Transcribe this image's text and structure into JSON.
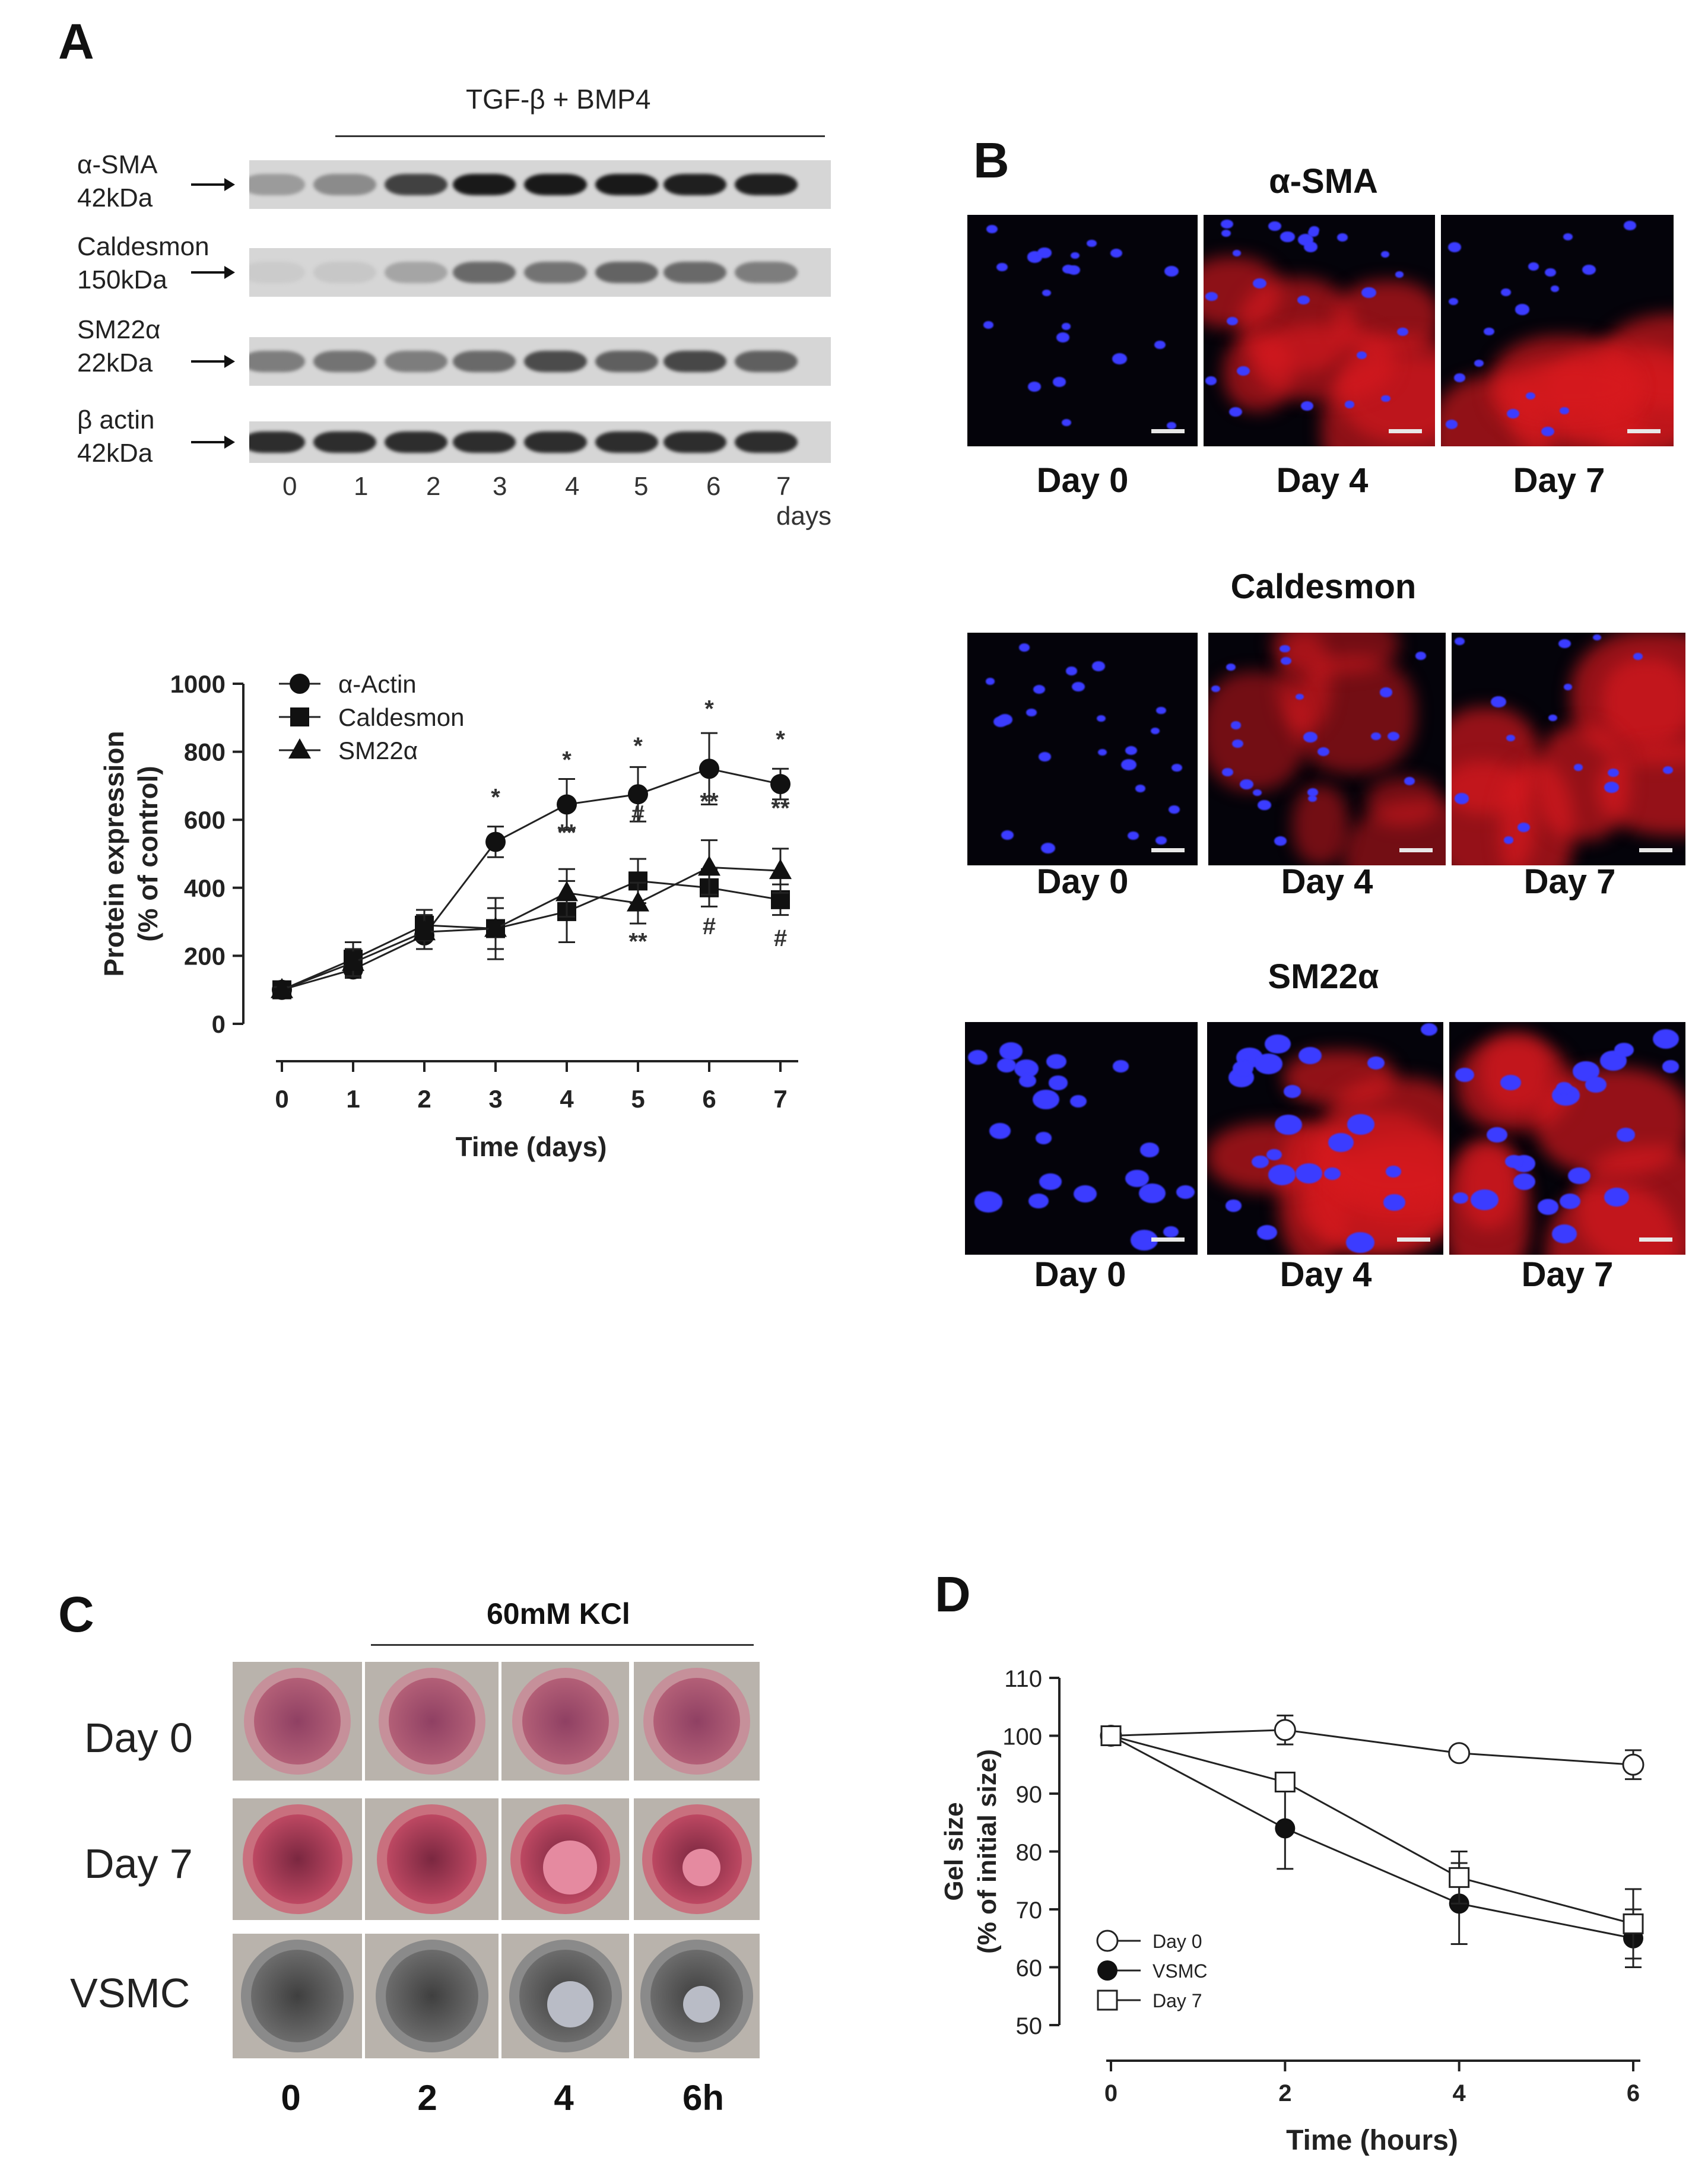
{
  "panelA": {
    "label": "A",
    "treatment": "TGF-β  + BMP4",
    "blots": [
      {
        "name": "α-SMA",
        "kda": "42kDa"
      },
      {
        "name": "Caldesmon",
        "kda": "150kDa"
      },
      {
        "name": "SM22α",
        "kda": "22kDa"
      },
      {
        "name": "β actin",
        "kda": "42kDa"
      }
    ],
    "lanes": [
      "0",
      "1",
      "2",
      "3",
      "4",
      "5",
      "6",
      "7 days"
    ]
  },
  "panelB": {
    "label": "B",
    "groups": [
      {
        "title": "α-SMA",
        "days": [
          "Day 0",
          "Day 4",
          "Day 7"
        ]
      },
      {
        "title": "Caldesmon",
        "days": [
          "Day 0",
          "Day 4",
          "Day 7"
        ]
      },
      {
        "title": "SM22α",
        "days": [
          "Day 0",
          "Day 4",
          "Day 7"
        ]
      }
    ]
  },
  "panelC": {
    "label": "C",
    "treatment": "60mM KCl",
    "rows": [
      "Day 0",
      "Day 7",
      "VSMC"
    ],
    "times": [
      "0",
      "2",
      "4",
      "6h"
    ]
  },
  "panelD": {
    "label": "D"
  },
  "chart_data": [
    {
      "type": "line",
      "xlabel": "Time (days)",
      "ylabel": "Protein expression\n(% of control)",
      "ylabel_lines": [
        "Protein expression",
        "(% of control)"
      ],
      "xlim": [
        0,
        7
      ],
      "ylim": [
        0,
        1000
      ],
      "xticks": [
        0,
        1,
        2,
        3,
        4,
        5,
        6,
        7
      ],
      "yticks": [
        0,
        200,
        400,
        600,
        800,
        1000
      ],
      "x": [
        0,
        1,
        2,
        3,
        4,
        5,
        6,
        7
      ],
      "series": [
        {
          "name": "α-Actin",
          "marker": "circle",
          "values": [
            100,
            160,
            260,
            535,
            645,
            675,
            750,
            705
          ],
          "errors": [
            8,
            25,
            40,
            45,
            75,
            80,
            105,
            45
          ]
        },
        {
          "name": "Caldesmon",
          "marker": "square",
          "values": [
            100,
            190,
            290,
            280,
            330,
            420,
            400,
            365
          ],
          "errors": [
            8,
            50,
            45,
            90,
            90,
            65,
            55,
            45
          ]
        },
        {
          "name": "SM22α",
          "marker": "triangle",
          "values": [
            100,
            180,
            270,
            280,
            385,
            355,
            460,
            450
          ],
          "errors": [
            8,
            40,
            50,
            60,
            70,
            60,
            80,
            65
          ]
        }
      ],
      "annotations": [
        {
          "x": 3,
          "y": 535,
          "text": "*"
        },
        {
          "x": 4,
          "y": 645,
          "text": "*"
        },
        {
          "x": 5,
          "y": 675,
          "text": "*"
        },
        {
          "x": 6,
          "y": 750,
          "text": "*"
        },
        {
          "x": 7,
          "y": 705,
          "text": "*"
        },
        {
          "x": 4,
          "y": 385,
          "text": "**"
        },
        {
          "x": 5,
          "y": 420,
          "text": "#"
        },
        {
          "x": 5,
          "y": 355,
          "text": "**"
        },
        {
          "x": 6,
          "y": 460,
          "text": "**"
        },
        {
          "x": 6,
          "y": 400,
          "text": "#"
        },
        {
          "x": 7,
          "y": 450,
          "text": "**"
        },
        {
          "x": 7,
          "y": 365,
          "text": "#"
        }
      ],
      "legend": "top-left"
    },
    {
      "type": "line",
      "xlabel": "Time (hours)",
      "ylabel": "Gel size\n(% of initial size)",
      "ylabel_lines": [
        "Gel size",
        "(% of initial size)"
      ],
      "xlim": [
        0,
        6
      ],
      "ylim": [
        50,
        110
      ],
      "xticks": [
        0,
        2,
        4,
        6
      ],
      "yticks": [
        50,
        60,
        70,
        80,
        90,
        100,
        110
      ],
      "x": [
        0,
        2,
        4,
        6
      ],
      "series": [
        {
          "name": "Day 0",
          "marker": "open-circle",
          "values": [
            100,
            101,
            97,
            95
          ],
          "errors": [
            0.5,
            2.5,
            0.5,
            2.5
          ]
        },
        {
          "name": "VSMC",
          "marker": "filled-circle",
          "values": [
            100,
            84,
            71,
            65
          ],
          "errors": [
            0.5,
            7,
            7,
            5
          ]
        },
        {
          "name": "Day 7",
          "marker": "open-square",
          "values": [
            100,
            92,
            75.5,
            67.5
          ],
          "errors": [
            0.5,
            1,
            4.5,
            6
          ]
        }
      ],
      "legend": "bottom-left"
    }
  ]
}
